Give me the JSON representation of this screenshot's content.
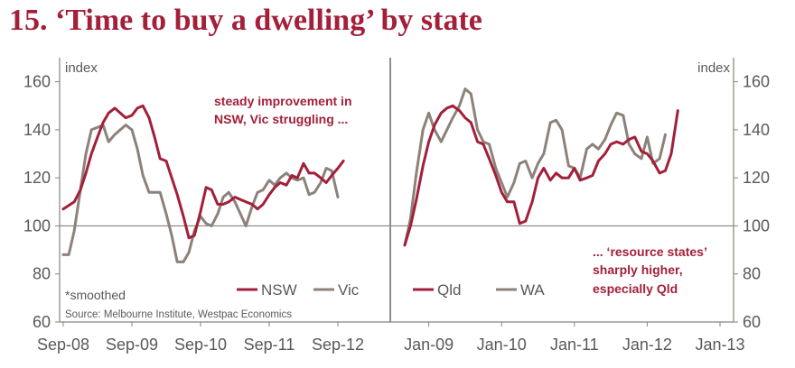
{
  "title": "15. ‘Time to buy a dwelling’ by state",
  "source": "Source: Melbourne Institute, Westpac Economics",
  "footnote": "*smoothed",
  "colors": {
    "primary": "#a31f3a",
    "secondary": "#8c8279",
    "axis": "#8c8279",
    "text": "#595959"
  },
  "chart_data": [
    {
      "type": "line",
      "panel": "left",
      "ylabel": "index",
      "ylim": [
        60,
        170
      ],
      "yticks": [
        60,
        80,
        100,
        120,
        140,
        160
      ],
      "reference_line": 100,
      "xlim": [
        2008.67,
        2012.92
      ],
      "xticks": [
        {
          "label": "Sep-08",
          "t": 2008.67
        },
        {
          "label": "Sep-09",
          "t": 2009.67
        },
        {
          "label": "Sep-10",
          "t": 2010.67
        },
        {
          "label": "Sep-11",
          "t": 2011.67
        },
        {
          "label": "Sep-12",
          "t": 2012.67
        }
      ],
      "annotation": [
        "steady improvement in",
        "NSW, Vic struggling ..."
      ],
      "series": [
        {
          "name": "NSW",
          "color": "#a31f3a",
          "points": [
            [
              2008.67,
              107
            ],
            [
              2008.83,
              110
            ],
            [
              2008.92,
              115
            ],
            [
              2009.0,
              122
            ],
            [
              2009.08,
              130
            ],
            [
              2009.17,
              137
            ],
            [
              2009.25,
              143
            ],
            [
              2009.33,
              147
            ],
            [
              2009.42,
              149
            ],
            [
              2009.5,
              147
            ],
            [
              2009.58,
              145
            ],
            [
              2009.67,
              146
            ],
            [
              2009.75,
              149
            ],
            [
              2009.83,
              150
            ],
            [
              2009.92,
              145
            ],
            [
              2010.0,
              137
            ],
            [
              2010.08,
              128
            ],
            [
              2010.17,
              127
            ],
            [
              2010.25,
              120
            ],
            [
              2010.33,
              113
            ],
            [
              2010.42,
              104
            ],
            [
              2010.5,
              95
            ],
            [
              2010.58,
              96
            ],
            [
              2010.67,
              106
            ],
            [
              2010.75,
              116
            ],
            [
              2010.83,
              115
            ],
            [
              2010.92,
              109
            ],
            [
              2011.0,
              109
            ],
            [
              2011.08,
              110
            ],
            [
              2011.17,
              112
            ],
            [
              2011.25,
              111
            ],
            [
              2011.33,
              110
            ],
            [
              2011.42,
              109
            ],
            [
              2011.5,
              107
            ],
            [
              2011.58,
              109
            ],
            [
              2011.67,
              113
            ],
            [
              2011.75,
              116
            ],
            [
              2011.83,
              118
            ],
            [
              2011.92,
              117
            ],
            [
              2012.0,
              121
            ],
            [
              2012.08,
              120
            ],
            [
              2012.17,
              126
            ],
            [
              2012.25,
              122
            ],
            [
              2012.33,
              122
            ],
            [
              2012.42,
              120
            ],
            [
              2012.5,
              118
            ],
            [
              2012.58,
              121
            ],
            [
              2012.67,
              124
            ],
            [
              2012.75,
              127
            ]
          ]
        },
        {
          "name": "Vic",
          "color": "#8c8279",
          "points": [
            [
              2008.67,
              88
            ],
            [
              2008.75,
              88
            ],
            [
              2008.83,
              98
            ],
            [
              2008.92,
              115
            ],
            [
              2009.0,
              130
            ],
            [
              2009.08,
              140
            ],
            [
              2009.17,
              141
            ],
            [
              2009.25,
              142
            ],
            [
              2009.33,
              135
            ],
            [
              2009.42,
              138
            ],
            [
              2009.5,
              140
            ],
            [
              2009.58,
              142
            ],
            [
              2009.67,
              140
            ],
            [
              2009.75,
              132
            ],
            [
              2009.83,
              121
            ],
            [
              2009.92,
              114
            ],
            [
              2010.0,
              114
            ],
            [
              2010.08,
              114
            ],
            [
              2010.17,
              105
            ],
            [
              2010.25,
              96
            ],
            [
              2010.33,
              85
            ],
            [
              2010.42,
              85
            ],
            [
              2010.5,
              89
            ],
            [
              2010.58,
              98
            ],
            [
              2010.67,
              104
            ],
            [
              2010.75,
              101
            ],
            [
              2010.83,
              100
            ],
            [
              2010.92,
              105
            ],
            [
              2011.0,
              112
            ],
            [
              2011.08,
              114
            ],
            [
              2011.17,
              110
            ],
            [
              2011.25,
              105
            ],
            [
              2011.33,
              100
            ],
            [
              2011.42,
              108
            ],
            [
              2011.5,
              114
            ],
            [
              2011.58,
              115
            ],
            [
              2011.67,
              119
            ],
            [
              2011.75,
              117
            ],
            [
              2011.83,
              120
            ],
            [
              2011.92,
              122
            ],
            [
              2012.0,
              120
            ],
            [
              2012.08,
              119
            ],
            [
              2012.17,
              120
            ],
            [
              2012.25,
              113
            ],
            [
              2012.33,
              114
            ],
            [
              2012.42,
              118
            ],
            [
              2012.5,
              124
            ],
            [
              2012.58,
              123
            ],
            [
              2012.67,
              112
            ]
          ]
        }
      ]
    },
    {
      "type": "line",
      "panel": "right",
      "ylabel": "index",
      "ylim": [
        60,
        170
      ],
      "yticks": [
        60,
        80,
        100,
        120,
        140,
        160
      ],
      "reference_line": 100,
      "xlim": [
        2008.67,
        2013.0
      ],
      "xticks": [
        {
          "label": "Jan-09",
          "t": 2009.0
        },
        {
          "label": "Jan-10",
          "t": 2010.0
        },
        {
          "label": "Jan-11",
          "t": 2011.0
        },
        {
          "label": "Jan-12",
          "t": 2012.0
        },
        {
          "label": "Jan-13",
          "t": 2013.0
        }
      ],
      "annotation": [
        "... ‘resource states’",
        "sharply higher,",
        "especially Qld"
      ],
      "series": [
        {
          "name": "Qld",
          "color": "#a31f3a",
          "points": [
            [
              2008.67,
              92
            ],
            [
              2008.75,
              100
            ],
            [
              2008.83,
              111
            ],
            [
              2008.92,
              125
            ],
            [
              2009.0,
              135
            ],
            [
              2009.08,
              142
            ],
            [
              2009.17,
              147
            ],
            [
              2009.25,
              149
            ],
            [
              2009.33,
              150
            ],
            [
              2009.42,
              148
            ],
            [
              2009.5,
              145
            ],
            [
              2009.58,
              143
            ],
            [
              2009.67,
              135
            ],
            [
              2009.75,
              134
            ],
            [
              2009.83,
              128
            ],
            [
              2009.92,
              121
            ],
            [
              2010.0,
              114
            ],
            [
              2010.08,
              110
            ],
            [
              2010.17,
              110
            ],
            [
              2010.25,
              101
            ],
            [
              2010.33,
              102
            ],
            [
              2010.42,
              110
            ],
            [
              2010.5,
              120
            ],
            [
              2010.58,
              124
            ],
            [
              2010.67,
              119
            ],
            [
              2010.75,
              122
            ],
            [
              2010.83,
              120
            ],
            [
              2010.92,
              120
            ],
            [
              2011.0,
              124
            ],
            [
              2011.08,
              119
            ],
            [
              2011.17,
              120
            ],
            [
              2011.25,
              121
            ],
            [
              2011.33,
              127
            ],
            [
              2011.42,
              130
            ],
            [
              2011.5,
              134
            ],
            [
              2011.58,
              135
            ],
            [
              2011.67,
              134
            ],
            [
              2011.75,
              136
            ],
            [
              2011.83,
              137
            ],
            [
              2011.92,
              131
            ],
            [
              2012.0,
              130
            ],
            [
              2012.08,
              127
            ],
            [
              2012.17,
              122
            ],
            [
              2012.25,
              123
            ],
            [
              2012.33,
              130
            ],
            [
              2012.42,
              148
            ]
          ]
        },
        {
          "name": "WA",
          "color": "#8c8279",
          "points": [
            [
              2008.67,
              92
            ],
            [
              2008.75,
              103
            ],
            [
              2008.83,
              122
            ],
            [
              2008.92,
              140
            ],
            [
              2009.0,
              147
            ],
            [
              2009.08,
              140
            ],
            [
              2009.17,
              135
            ],
            [
              2009.25,
              140
            ],
            [
              2009.33,
              145
            ],
            [
              2009.42,
              150
            ],
            [
              2009.5,
              157
            ],
            [
              2009.58,
              155
            ],
            [
              2009.67,
              140
            ],
            [
              2009.75,
              135
            ],
            [
              2009.83,
              134
            ],
            [
              2009.92,
              124
            ],
            [
              2010.0,
              118
            ],
            [
              2010.08,
              112
            ],
            [
              2010.17,
              118
            ],
            [
              2010.25,
              126
            ],
            [
              2010.33,
              127
            ],
            [
              2010.42,
              120
            ],
            [
              2010.5,
              126
            ],
            [
              2010.58,
              130
            ],
            [
              2010.67,
              143
            ],
            [
              2010.75,
              144
            ],
            [
              2010.83,
              140
            ],
            [
              2010.92,
              125
            ],
            [
              2011.0,
              124
            ],
            [
              2011.08,
              120
            ],
            [
              2011.17,
              132
            ],
            [
              2011.25,
              134
            ],
            [
              2011.33,
              132
            ],
            [
              2011.42,
              136
            ],
            [
              2011.5,
              142
            ],
            [
              2011.58,
              147
            ],
            [
              2011.67,
              146
            ],
            [
              2011.75,
              134
            ],
            [
              2011.83,
              130
            ],
            [
              2011.92,
              128
            ],
            [
              2012.0,
              137
            ],
            [
              2012.08,
              126
            ],
            [
              2012.17,
              128
            ],
            [
              2012.25,
              138
            ]
          ]
        }
      ]
    }
  ]
}
